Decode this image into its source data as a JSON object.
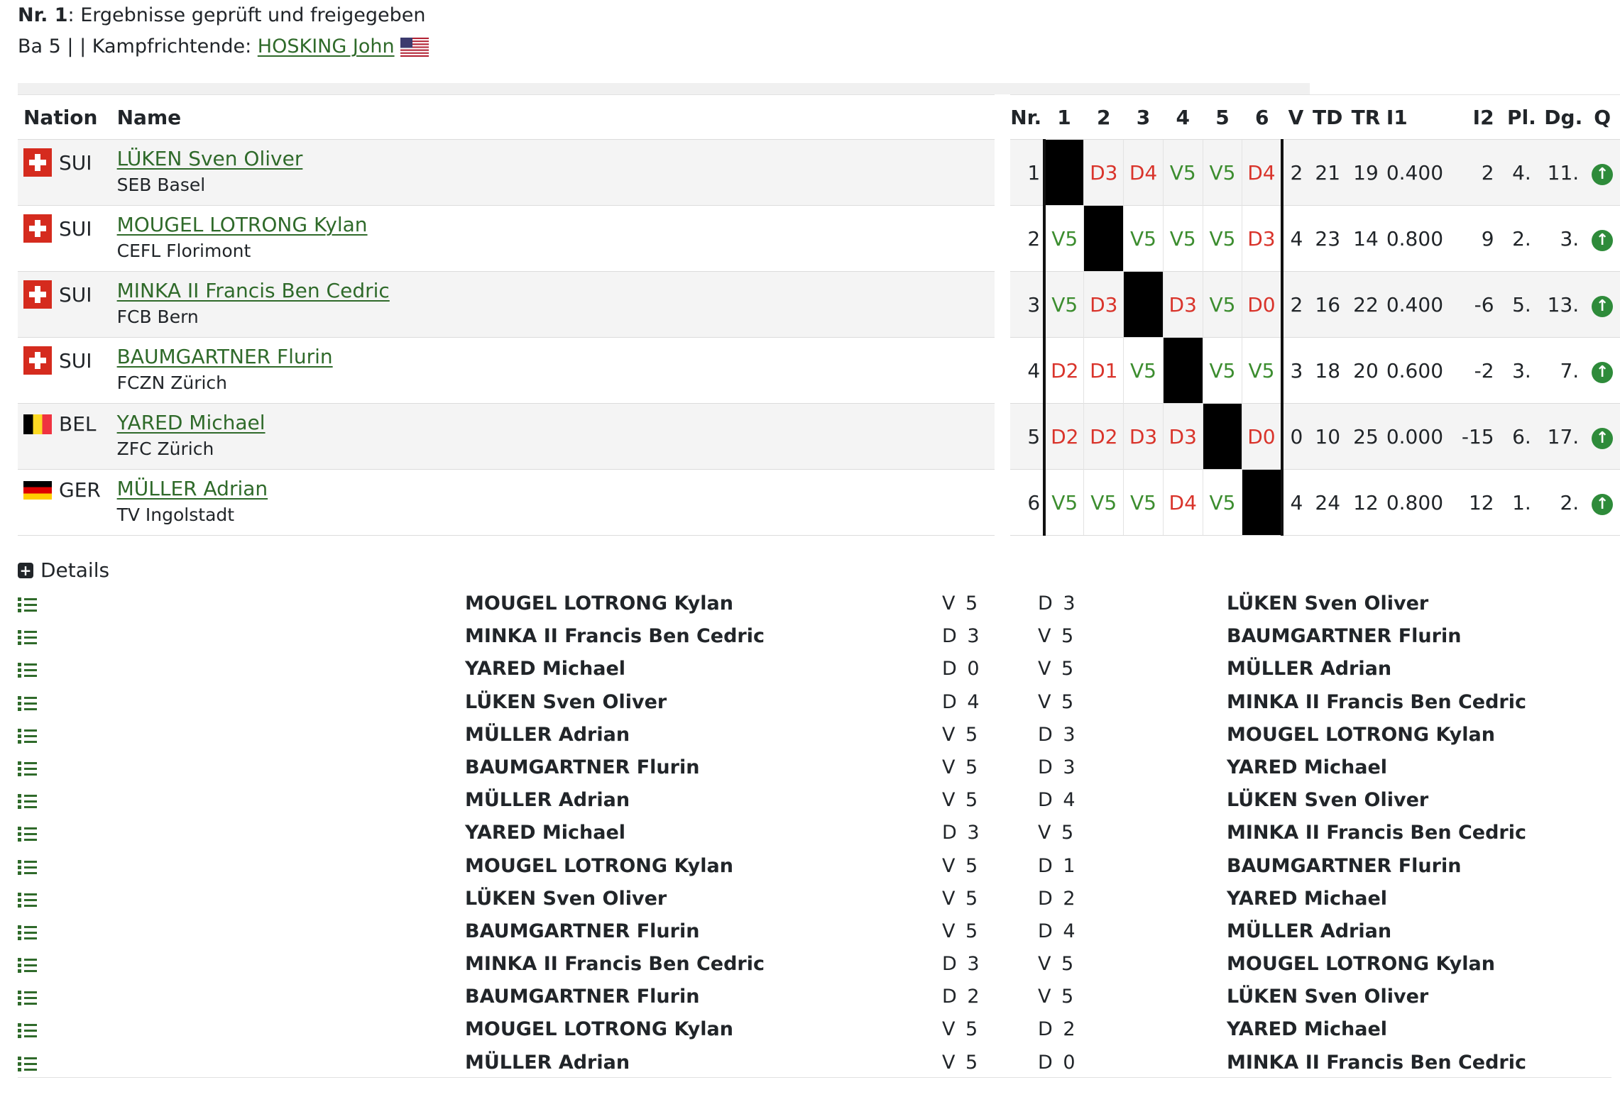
{
  "header": {
    "line1_bold": "Nr. 1",
    "line1_rest": ": Ergebnisse geprüft und freigegeben",
    "line2_prefix": "Ba 5 |  | Kampfrichtende: ",
    "referee": "HOSKING John",
    "referee_flag": "us-flag-icon"
  },
  "pool": {
    "headers": {
      "nation": "Nation",
      "name": "Name",
      "nr": "Nr.",
      "bouts": [
        "1",
        "2",
        "3",
        "4",
        "5",
        "6"
      ],
      "v": "V",
      "td": "TD",
      "tr": "TR",
      "i1": "I1",
      "i2": "I2",
      "pl": "Pl.",
      "dg": "Dg.",
      "q": "Q"
    },
    "rows": [
      {
        "nation": "SUI",
        "flag": "switzerland",
        "name": "LÜKEN Sven Oliver",
        "club": "SEB Basel",
        "nr": "1",
        "bouts": [
          "",
          "D3",
          "D4",
          "V5",
          "V5",
          "D4"
        ],
        "v": "2",
        "td": "21",
        "tr": "19",
        "i1": "0.400",
        "i2": "2",
        "pl": "4.",
        "dg": "11."
      },
      {
        "nation": "SUI",
        "flag": "switzerland",
        "name": "MOUGEL LOTRONG Kylan",
        "club": "CEFL Florimont",
        "nr": "2",
        "bouts": [
          "V5",
          "",
          "V5",
          "V5",
          "V5",
          "D3"
        ],
        "v": "4",
        "td": "23",
        "tr": "14",
        "i1": "0.800",
        "i2": "9",
        "pl": "2.",
        "dg": "3."
      },
      {
        "nation": "SUI",
        "flag": "switzerland",
        "name": "MINKA II Francis Ben Cedric",
        "club": "FCB Bern",
        "nr": "3",
        "bouts": [
          "V5",
          "D3",
          "",
          "D3",
          "V5",
          "D0"
        ],
        "v": "2",
        "td": "16",
        "tr": "22",
        "i1": "0.400",
        "i2": "-6",
        "pl": "5.",
        "dg": "13."
      },
      {
        "nation": "SUI",
        "flag": "switzerland",
        "name": "BAUMGARTNER Flurin",
        "club": "FCZN Zürich",
        "nr": "4",
        "bouts": [
          "D2",
          "D1",
          "V5",
          "",
          "V5",
          "V5"
        ],
        "v": "3",
        "td": "18",
        "tr": "20",
        "i1": "0.600",
        "i2": "-2",
        "pl": "3.",
        "dg": "7."
      },
      {
        "nation": "BEL",
        "flag": "belgium",
        "name": "YARED Michael",
        "club": "ZFC Zürich",
        "nr": "5",
        "bouts": [
          "D2",
          "D2",
          "D3",
          "D3",
          "",
          "D0"
        ],
        "v": "0",
        "td": "10",
        "tr": "25",
        "i1": "0.000",
        "i2": "-15",
        "pl": "6.",
        "dg": "17."
      },
      {
        "nation": "GER",
        "flag": "germany",
        "name": "MÜLLER Adrian",
        "club": "TV Ingolstadt",
        "nr": "6",
        "bouts": [
          "V5",
          "V5",
          "V5",
          "D4",
          "V5",
          ""
        ],
        "v": "4",
        "td": "24",
        "tr": "12",
        "i1": "0.800",
        "i2": "12",
        "pl": "1.",
        "dg": "2."
      }
    ],
    "qualified_icon": "arrow-up-circle-icon",
    "colors": {
      "victory": "#3c8d2f",
      "defeat": "#d9342b",
      "link": "#2f6a2a",
      "qualified": "#2e8b3a"
    }
  },
  "details": {
    "label": "Details",
    "bouts": [
      {
        "f1": "MOUGEL LOTRONG Kylan",
        "s1": "V 5",
        "s2": "D 3",
        "f2": "LÜKEN Sven Oliver"
      },
      {
        "f1": "MINKA II Francis Ben Cedric",
        "s1": "D 3",
        "s2": "V 5",
        "f2": "BAUMGARTNER Flurin"
      },
      {
        "f1": "YARED Michael",
        "s1": "D 0",
        "s2": "V 5",
        "f2": "MÜLLER Adrian"
      },
      {
        "f1": "LÜKEN Sven Oliver",
        "s1": "D 4",
        "s2": "V 5",
        "f2": "MINKA II Francis Ben Cedric"
      },
      {
        "f1": "MÜLLER Adrian",
        "s1": "V 5",
        "s2": "D 3",
        "f2": "MOUGEL LOTRONG Kylan"
      },
      {
        "f1": "BAUMGARTNER Flurin",
        "s1": "V 5",
        "s2": "D 3",
        "f2": "YARED Michael"
      },
      {
        "f1": "MÜLLER Adrian",
        "s1": "V 5",
        "s2": "D 4",
        "f2": "LÜKEN Sven Oliver"
      },
      {
        "f1": "YARED Michael",
        "s1": "D 3",
        "s2": "V 5",
        "f2": "MINKA II Francis Ben Cedric"
      },
      {
        "f1": "MOUGEL LOTRONG Kylan",
        "s1": "V 5",
        "s2": "D 1",
        "f2": "BAUMGARTNER Flurin"
      },
      {
        "f1": "LÜKEN Sven Oliver",
        "s1": "V 5",
        "s2": "D 2",
        "f2": "YARED Michael"
      },
      {
        "f1": "BAUMGARTNER Flurin",
        "s1": "V 5",
        "s2": "D 4",
        "f2": "MÜLLER Adrian"
      },
      {
        "f1": "MINKA II Francis Ben Cedric",
        "s1": "D 3",
        "s2": "V 5",
        "f2": "MOUGEL LOTRONG Kylan"
      },
      {
        "f1": "BAUMGARTNER Flurin",
        "s1": "D 2",
        "s2": "V 5",
        "f2": "LÜKEN Sven Oliver"
      },
      {
        "f1": "MOUGEL LOTRONG Kylan",
        "s1": "V 5",
        "s2": "D 2",
        "f2": "YARED Michael"
      },
      {
        "f1": "MÜLLER Adrian",
        "s1": "V 5",
        "s2": "D 0",
        "f2": "MINKA II Francis Ben Cedric"
      }
    ]
  }
}
